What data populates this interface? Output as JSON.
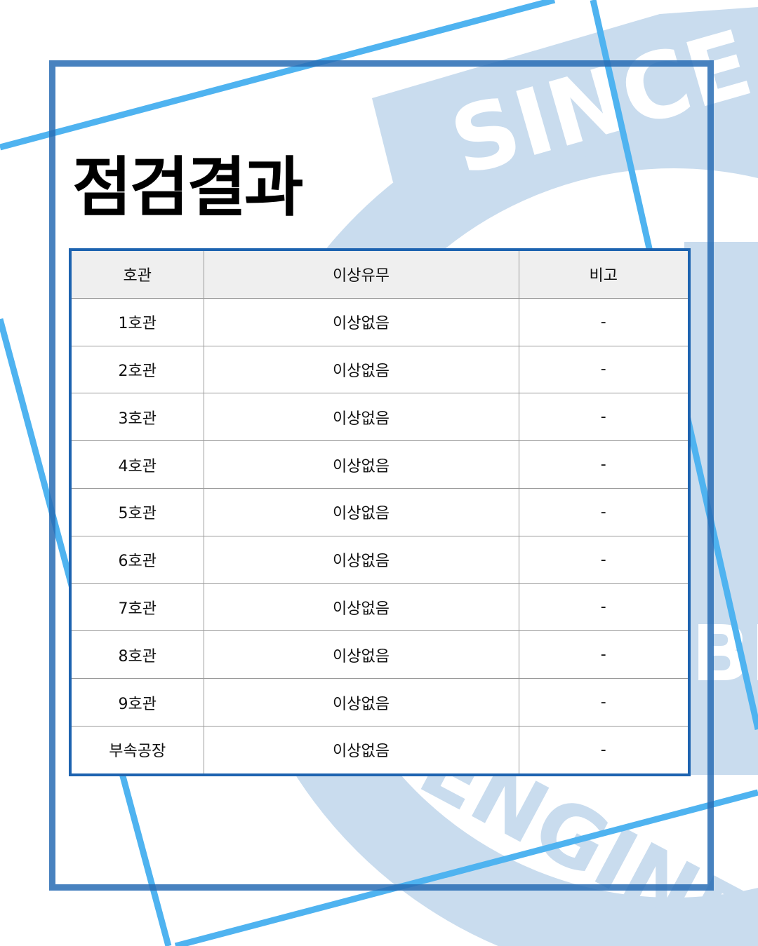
{
  "title": "점검결과",
  "watermark": {
    "top_text": "SINCE",
    "bottom_text": "ENGINE",
    "side_text": "BM"
  },
  "table": {
    "headers": [
      "호관",
      "이상유무",
      "비고"
    ],
    "rows": [
      [
        "1호관",
        "이상없음",
        "-"
      ],
      [
        "2호관",
        "이상없음",
        "-"
      ],
      [
        "3호관",
        "이상없음",
        "-"
      ],
      [
        "4호관",
        "이상없음",
        "-"
      ],
      [
        "5호관",
        "이상없음",
        "-"
      ],
      [
        "6호관",
        "이상없음",
        "-"
      ],
      [
        "7호관",
        "이상없음",
        "-"
      ],
      [
        "8호관",
        "이상없음",
        "-"
      ],
      [
        "9호관",
        "이상없음",
        "-"
      ],
      [
        "부속공장",
        "이상없음",
        "-"
      ]
    ]
  },
  "colors": {
    "frame_blue": "#2868b4",
    "accent_sky": "#4fb3f0",
    "watermark_blue": "#c9dcee",
    "table_border": "#1d63b0",
    "header_bg": "#efefef"
  }
}
